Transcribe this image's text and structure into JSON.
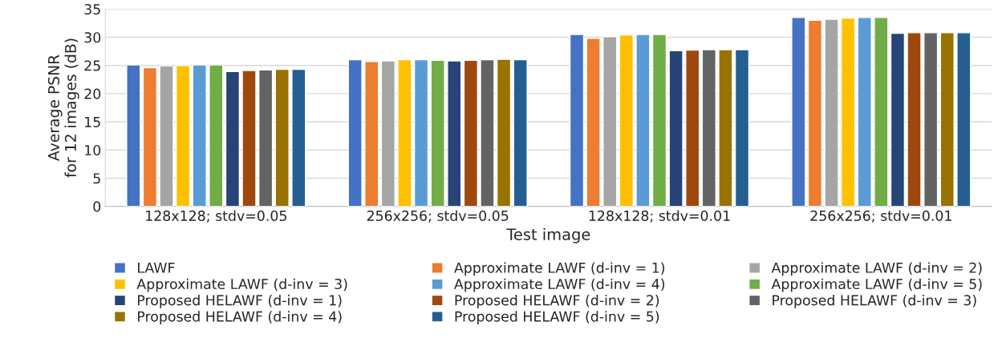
{
  "chart_data": {
    "type": "bar",
    "xlabel": "Test image",
    "ylabel": "Average PSNR\nfor 12 images (dB)",
    "categories": [
      "128x128; stdv=0.05",
      "256x256; stdv=0.05",
      "128x128; stdv=0.01",
      "256x256; stdv=0.01"
    ],
    "series": [
      {
        "name": "LAWF",
        "color": "#4472c4",
        "values": [
          25.1,
          26.0,
          30.5,
          33.5
        ]
      },
      {
        "name": "Approximate LAWF (d-inv = 1)",
        "color": "#ed7d31",
        "values": [
          24.6,
          25.7,
          29.8,
          33.0
        ]
      },
      {
        "name": "Approximate LAWF (d-inv = 2)",
        "color": "#a5a5a5",
        "values": [
          24.9,
          25.8,
          30.1,
          33.2
        ]
      },
      {
        "name": "Approximate LAWF (d-inv = 3)",
        "color": "#ffc000",
        "values": [
          25.0,
          26.0,
          30.4,
          33.4
        ]
      },
      {
        "name": "Approximate LAWF (d-inv = 4)",
        "color": "#5b9bd5",
        "values": [
          25.1,
          26.0,
          30.5,
          33.5
        ]
      },
      {
        "name": "Approximate LAWF (d-inv = 5)",
        "color": "#70ad47",
        "values": [
          25.1,
          25.9,
          30.5,
          33.5
        ]
      },
      {
        "name": "Proposed HELAWF (d-inv = 1)",
        "color": "#264478",
        "values": [
          23.9,
          25.8,
          27.6,
          30.7
        ]
      },
      {
        "name": "Proposed HELAWF (d-inv = 2)",
        "color": "#9e480e",
        "values": [
          24.1,
          25.9,
          27.7,
          30.8
        ]
      },
      {
        "name": "Proposed HELAWF (d-inv = 3)",
        "color": "#636363",
        "values": [
          24.2,
          26.0,
          27.8,
          30.8
        ]
      },
      {
        "name": "Proposed HELAWF (d-inv = 4)",
        "color": "#997300",
        "values": [
          24.3,
          26.1,
          27.8,
          30.8
        ]
      },
      {
        "name": "Proposed HELAWF (d-inv = 5)",
        "color": "#255e91",
        "values": [
          24.3,
          26.0,
          27.8,
          30.8
        ]
      }
    ],
    "ylim": [
      0,
      35
    ],
    "yticks": [
      0,
      5,
      10,
      15,
      20,
      25,
      30,
      35
    ],
    "grid": "y",
    "legend": "bottom"
  }
}
